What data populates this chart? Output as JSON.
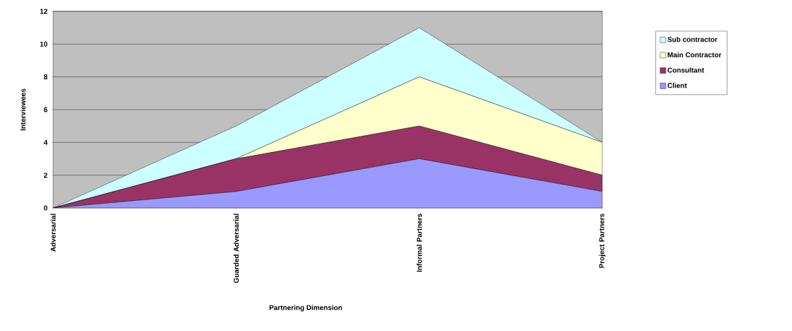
{
  "chart_data": {
    "type": "area",
    "stacked": true,
    "xlabel": "Partnering Dimension",
    "ylabel": "Interviewees",
    "categories": [
      "Adversarial",
      "Guarded Adversarial",
      "Informal Partners",
      "Project Partners"
    ],
    "series": [
      {
        "name": "Client",
        "color": "#9999ff",
        "values": [
          0,
          1,
          3,
          1
        ]
      },
      {
        "name": "Consultant",
        "color": "#993366",
        "values": [
          0,
          2,
          2,
          1
        ]
      },
      {
        "name": "Main Contractor",
        "color": "#ffffcc",
        "values": [
          0,
          0,
          3,
          2
        ]
      },
      {
        "name": "Sub contractor",
        "color": "#ccffff",
        "values": [
          0,
          2,
          3,
          0
        ]
      }
    ],
    "ylim": [
      0,
      12
    ],
    "yticks": [
      0,
      2,
      4,
      6,
      8,
      10,
      12
    ],
    "grid": "y",
    "legend": "right"
  }
}
